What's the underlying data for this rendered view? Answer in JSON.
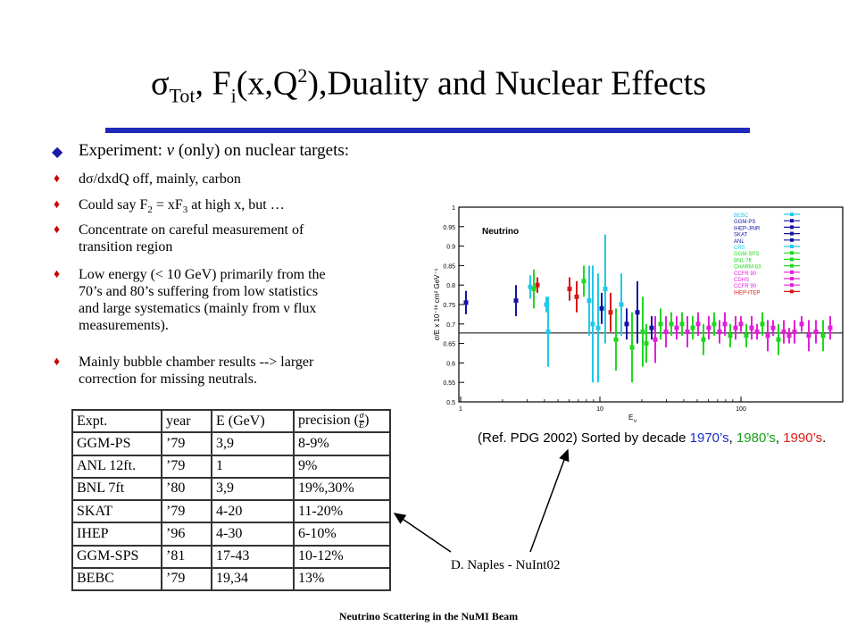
{
  "title": {
    "sigma": "σ",
    "sub_tot": "Tot",
    "f": ", F",
    "sub_i": "i",
    "mid": "(x,Q",
    "sup_2": "2",
    "rest": "),Duality and Nuclear Effects"
  },
  "bullets": {
    "main_pre": "Experiment: ",
    "main_nu": "ν",
    "main_post": " (only) on nuclear targets:",
    "item1": "dσ/dxdQ off, mainly, carbon",
    "item2_pre": "Could say F",
    "item2_sub": "2",
    "item2_mid": " = xF",
    "item2_sub2": "3",
    "item2_post": " at high x, but …",
    "item3_a": "Concentrate on careful measurement of",
    "item3_b": "transition region",
    "item4_a": "Low energy (< 10 GeV) primarily from the",
    "item4_b": "70’s and 80’s suffering from low statistics",
    "item4_c": "and large systematics (mainly from ν flux",
    "item4_d": "measurements).",
    "item5_a": "Mainly bubble chamber results --> larger",
    "item5_b": "correction for missing neutrals."
  },
  "table": {
    "header": [
      "Expt.",
      "year",
      "E (GeV)",
      "precision ("
    ],
    "header_frac_num": "σ",
    "header_frac_den": "E",
    "header_close": ")",
    "rows": [
      [
        "GGM-PS",
        "’79",
        "3,9",
        "8-9%"
      ],
      [
        "ANL 12ft.",
        "’79",
        "1",
        "9%"
      ],
      [
        "BNL 7ft",
        "’80",
        "3,9",
        "19%,30%"
      ],
      [
        "SKAT",
        "’79",
        "4-20",
        "11-20%"
      ],
      [
        "IHEP",
        "’96",
        "4-30",
        "6-10%"
      ],
      [
        "GGM-SPS",
        "’81",
        "17-43",
        "10-12%"
      ],
      [
        "BEBC",
        "’79",
        "19,34",
        "13%"
      ]
    ]
  },
  "plot": {
    "label": "Neutrino",
    "ylabel": "σ/E x 10⁻³⁸ cm² GeV⁻¹",
    "xlabel": "E",
    "xlabel_sub": "ν",
    "yticks": [
      "1",
      "0.95",
      "0.9",
      "0.85",
      "0.8",
      "0.75",
      "0.7",
      "0.65",
      "0.6",
      "0.55",
      "0.5"
    ],
    "xticks": [
      "1",
      "10",
      "100"
    ],
    "legend": [
      "BEBC",
      "GGM-PS",
      "IHEP-JINR",
      "SKAT",
      "ANL",
      "CRS",
      "GGM-SPS",
      "BNL 7ft",
      "CHARM 83",
      "CCFR 90",
      "CDHS",
      "CCFR 90",
      "IHEP-ITEP"
    ],
    "colors": {
      "cyan": "#22c8e8",
      "blue": "#1414a0",
      "green": "#20d820",
      "magenta": "#e020d8",
      "red": "#d81818",
      "axis": "#000000"
    }
  },
  "caption": {
    "pre": "(Ref. PDG 2002) Sorted by decade ",
    "d1": "1970’s",
    "sep1": ", ",
    "d2": "1980’s",
    "sep2": ", ",
    "d3": "1990’s",
    "end": "."
  },
  "credit": "D. Naples - NuInt02",
  "footer": "Neutrino Scattering in the NuMI Beam"
}
